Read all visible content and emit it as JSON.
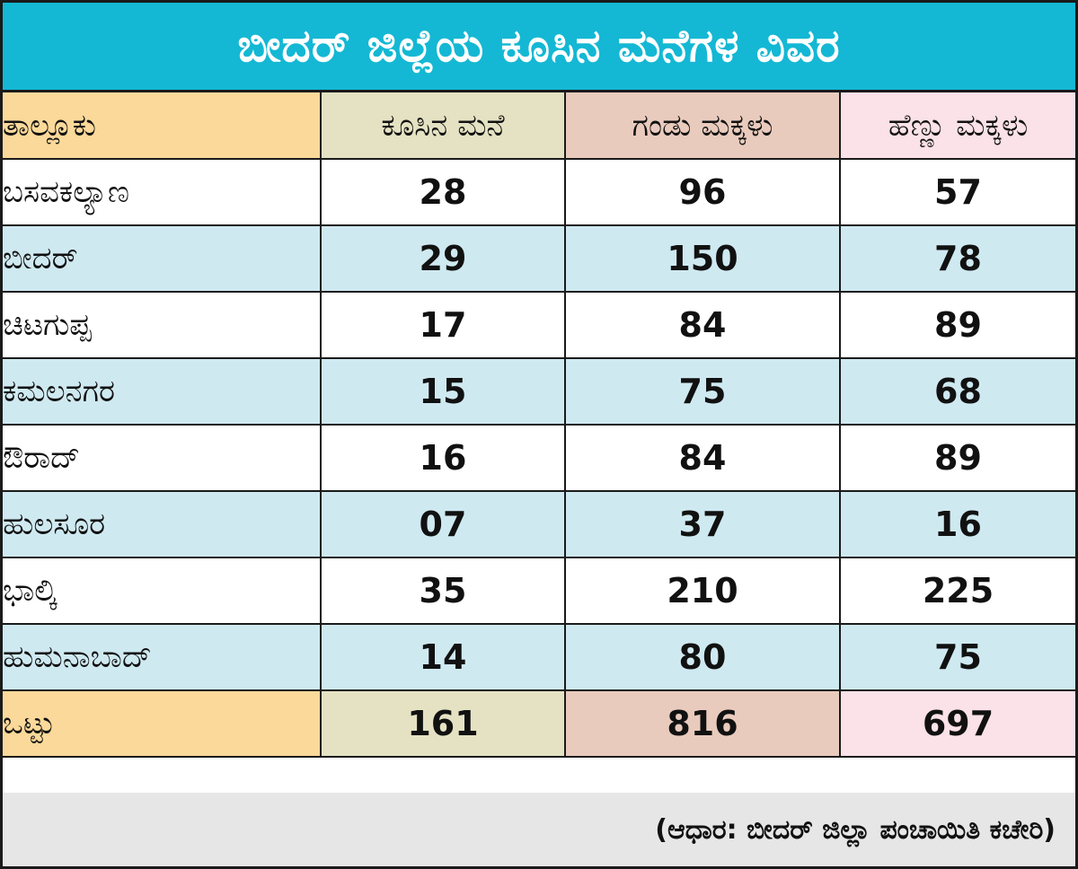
{
  "title": "ಬೀದರ್ ಜಿಲ್ಲೆಯ ಕೂಸಿನ ಮನೆಗಳ ವಿವರ",
  "headers": [
    "ತಾಲ್ಲೂಕು",
    "ಕೂಸಿನ ಮನೆ",
    "ಗಂಡು ಮಕ್ಕಳು",
    "ಹೆಣ್ಣು ಮಕ್ಕಳು"
  ],
  "rows": [
    {
      "taluk": "ಬಸವಕಲ್ಯಾಣ",
      "homes": "28",
      "boys": "96",
      "girls": "57"
    },
    {
      "taluk": "ಬೀದರ್",
      "homes": "29",
      "boys": "150",
      "girls": "78"
    },
    {
      "taluk": "ಚಿಟಗುಪ್ಪ",
      "homes": "17",
      "boys": "84",
      "girls": "89"
    },
    {
      "taluk": "ಕಮಲನಗರ",
      "homes": "15",
      "boys": "75",
      "girls": "68"
    },
    {
      "taluk": "ಔರಾದ್",
      "homes": "16",
      "boys": "84",
      "girls": "89"
    },
    {
      "taluk": "ಹುಲಸೂರ",
      "homes": "07",
      "boys": "37",
      "girls": "16"
    },
    {
      "taluk": "ಭಾಲ್ಕಿ",
      "homes": "35",
      "boys": "210",
      "girls": "225"
    },
    {
      "taluk": "ಹುಮನಾಬಾದ್",
      "homes": "14",
      "boys": "80",
      "girls": "75"
    }
  ],
  "total": {
    "label": "ಒಟ್ಟು",
    "homes": "161",
    "boys": "816",
    "girls": "697"
  },
  "source": "(ಆಧಾರ: ಬೀದರ್ ಜಿಲ್ಲಾ ಪಂಚಾಯಿತಿ ಕಚೇರಿ)",
  "colors": {
    "title_bg": "#14b8d4",
    "row_alt": "#cfe9f1",
    "col_taluk": "#fbd99a",
    "col_homes": "#e4e2c2",
    "col_boys": "#e9cbbd",
    "col_girls": "#fbe1e8",
    "footer_bg": "#e6e6e6"
  }
}
